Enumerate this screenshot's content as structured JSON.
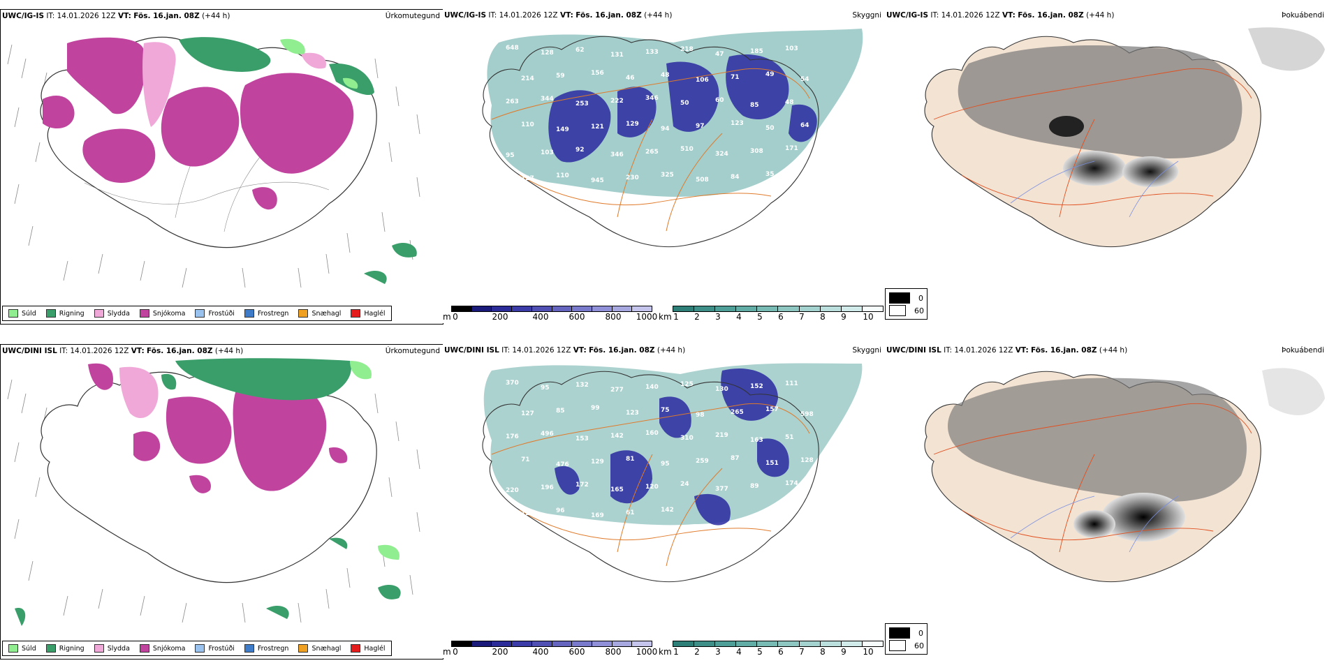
{
  "rows": [
    {
      "model": "UWC/IG-IS",
      "it_label": "IT:",
      "it_time": "14.01.2026 12Z",
      "vt_label": "VT:",
      "vt_time": "Fös. 16.jan. 08Z",
      "lead": "(+44 h)",
      "titles": {
        "precip": "Úrkomutegund",
        "vis": "Skyggni",
        "fog": "Þokuábendi"
      },
      "vis_labels": [
        "648",
        "128",
        "62",
        "131",
        "133",
        "218",
        "47",
        "185",
        "103",
        "214",
        "59",
        "156",
        "46",
        "48",
        "106",
        "71",
        "49",
        "54",
        "263",
        "344",
        "253",
        "222",
        "346",
        "50",
        "60",
        "85",
        "48",
        "110",
        "149",
        "121",
        "129",
        "94",
        "97",
        "123",
        "50",
        "64",
        "95",
        "103",
        "92",
        "346",
        "265",
        "510",
        "324",
        "308",
        "171",
        "127",
        "110",
        "945",
        "230",
        "325",
        "508",
        "84",
        "35",
        "324"
      ],
      "vis_extra_text": []
    },
    {
      "model": "UWC/DINI ISL",
      "it_label": "IT:",
      "it_time": "14.01.2026 12Z",
      "vt_label": "VT:",
      "vt_time": "Fös. 16.jan. 08Z",
      "lead": "(+44 h)",
      "titles": {
        "precip": "Úrkomutegund",
        "vis": "Skyggni",
        "fog": "Þokuábendi"
      },
      "vis_labels": [
        "370",
        "95",
        "132",
        "277",
        "140",
        "125",
        "130",
        "152",
        "111",
        "127",
        "85",
        "99",
        "123",
        "75",
        "98",
        "265",
        "157",
        "598",
        "176",
        "496",
        "153",
        "142",
        "160",
        "310",
        "219",
        "163",
        "51",
        "71",
        "476",
        "129",
        "81",
        "95",
        "259",
        "87",
        "151",
        "128",
        "220",
        "196",
        "172",
        "165",
        "120",
        "24",
        "377",
        "89",
        "174",
        "12",
        "96",
        "169",
        "61",
        "142"
      ],
      "vis_extra_text": []
    }
  ],
  "precip_legend": [
    {
      "label": "Súld",
      "color": "#90ee90"
    },
    {
      "label": "Rigning",
      "color": "#3a9e6a"
    },
    {
      "label": "Slydda",
      "color": "#f0a8d8"
    },
    {
      "label": "Snjókoma",
      "color": "#c0449e"
    },
    {
      "label": "Frostúði",
      "color": "#99c3ee"
    },
    {
      "label": "Frostregn",
      "color": "#3e7bc8"
    },
    {
      "label": "Snæhagl",
      "color": "#f0a020"
    },
    {
      "label": "Haglél",
      "color": "#e51c1c"
    }
  ],
  "cloud_scale": {
    "unit": "m",
    "ticks": [
      "0",
      "200",
      "400",
      "600",
      "800",
      "1000"
    ]
  },
  "vis_scale": {
    "unit": "km",
    "ticks": [
      "1",
      "2",
      "3",
      "4",
      "5",
      "6",
      "7",
      "8",
      "9",
      "10"
    ]
  },
  "fog_legend": [
    {
      "label": "0",
      "color": "#000000"
    },
    {
      "label": "60",
      "color": "#ffffff"
    }
  ],
  "colors": {
    "snow": "#c0449e",
    "rain": "#3a9e6a",
    "sleet": "#f0a8d8",
    "drizzle": "#90ee90",
    "vis_teal": "#5aa6a0",
    "cloud_blue": "#2a2aa0",
    "road": "#e07a2a",
    "land_fog": "#f3e3d3"
  }
}
